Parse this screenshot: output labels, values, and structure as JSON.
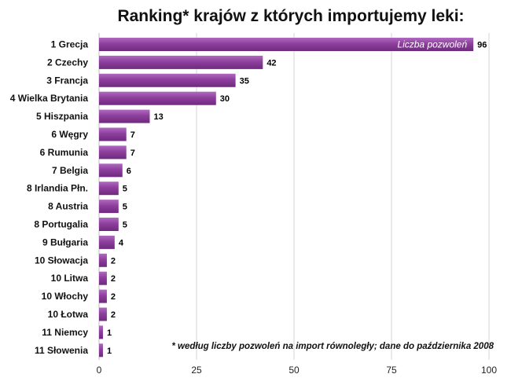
{
  "chart_data": {
    "type": "bar",
    "orientation": "horizontal",
    "title": "Ranking* krajów z których importujemy leki:",
    "categories": [
      "1 Grecja",
      "2 Czechy",
      "3 Francja",
      "4 Wielka Brytania",
      "5 Hiszpania",
      "6 Węgry",
      "6 Rumunia",
      "7 Belgia",
      "8 Irlandia Płn.",
      "8 Austria",
      "8 Portugalia",
      "9 Bułgaria",
      "10 Słowacja",
      "10 Litwa",
      "10 Włochy",
      "10 Łotwa",
      "11 Niemcy",
      "11 Słowenia"
    ],
    "series": [
      {
        "name": "Liczba pozwoleń",
        "values": [
          96,
          42,
          35,
          30,
          13,
          7,
          7,
          6,
          5,
          5,
          5,
          4,
          2,
          2,
          2,
          2,
          1,
          1
        ]
      }
    ],
    "xlim": [
      0,
      100
    ],
    "xticks": [
      0,
      25,
      50,
      75,
      100
    ],
    "grid": true,
    "bar_color": "#8e3f9d",
    "footnote": "* według liczby pozwoleń na import równoległy; dane do października 2008"
  }
}
